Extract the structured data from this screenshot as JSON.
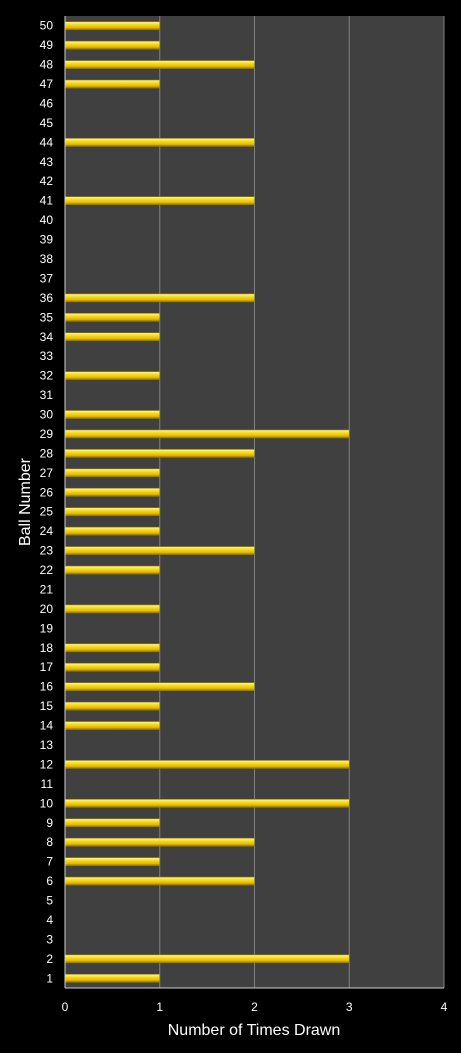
{
  "chart_data": {
    "type": "bar",
    "orientation": "horizontal",
    "title": "",
    "xlabel": "Number of Times Drawn",
    "ylabel": "Ball Number",
    "xlim": [
      0,
      4
    ],
    "xticks": [
      0,
      1,
      2,
      3,
      4
    ],
    "grid": true,
    "legend": "none",
    "colors": {
      "background": "#000000",
      "plot_area": "#404040",
      "bar": "#f2d21a",
      "bar_highlight": "#fff26a",
      "bar_shadow": "#9c8000",
      "gridline": "#808080",
      "text": "#ffffff"
    },
    "categories": [
      "1",
      "2",
      "3",
      "4",
      "5",
      "6",
      "7",
      "8",
      "9",
      "10",
      "11",
      "12",
      "13",
      "14",
      "15",
      "16",
      "17",
      "18",
      "19",
      "20",
      "21",
      "22",
      "23",
      "24",
      "25",
      "26",
      "27",
      "28",
      "29",
      "30",
      "31",
      "32",
      "33",
      "34",
      "35",
      "36",
      "37",
      "38",
      "39",
      "40",
      "41",
      "42",
      "43",
      "44",
      "45",
      "46",
      "47",
      "48",
      "49",
      "50"
    ],
    "values": [
      1,
      3,
      0,
      0,
      0,
      2,
      1,
      2,
      1,
      3,
      0,
      3,
      0,
      1,
      1,
      2,
      1,
      1,
      0,
      1,
      0,
      1,
      2,
      1,
      1,
      1,
      1,
      2,
      3,
      1,
      0,
      1,
      0,
      1,
      1,
      2,
      0,
      0,
      0,
      0,
      2,
      0,
      0,
      2,
      0,
      0,
      1,
      2,
      1,
      1
    ]
  }
}
